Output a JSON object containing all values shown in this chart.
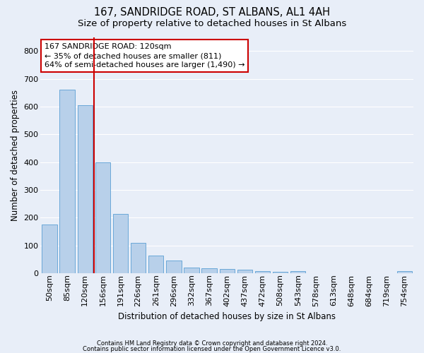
{
  "title1": "167, SANDRIDGE ROAD, ST ALBANS, AL1 4AH",
  "title2": "Size of property relative to detached houses in St Albans",
  "xlabel": "Distribution of detached houses by size in St Albans",
  "ylabel": "Number of detached properties",
  "footer1": "Contains HM Land Registry data © Crown copyright and database right 2024.",
  "footer2": "Contains public sector information licensed under the Open Government Licence v3.0.",
  "categories": [
    "50sqm",
    "85sqm",
    "120sqm",
    "156sqm",
    "191sqm",
    "226sqm",
    "261sqm",
    "296sqm",
    "332sqm",
    "367sqm",
    "402sqm",
    "437sqm",
    "472sqm",
    "508sqm",
    "543sqm",
    "578sqm",
    "613sqm",
    "648sqm",
    "684sqm",
    "719sqm",
    "754sqm"
  ],
  "values": [
    175,
    660,
    605,
    400,
    215,
    110,
    63,
    47,
    20,
    18,
    15,
    12,
    9,
    5,
    7,
    0,
    0,
    0,
    0,
    0,
    8
  ],
  "bar_color": "#b8d0ea",
  "bar_edge_color": "#5a9fd4",
  "marker_index": 2,
  "marker_color": "#cc0000",
  "annotation_line1": "167 SANDRIDGE ROAD: 120sqm",
  "annotation_line2": "← 35% of detached houses are smaller (811)",
  "annotation_line3": "64% of semi-detached houses are larger (1,490) →",
  "annotation_box_color": "#ffffff",
  "annotation_box_edge": "#cc0000",
  "ylim": [
    0,
    850
  ],
  "yticks": [
    0,
    100,
    200,
    300,
    400,
    500,
    600,
    700,
    800
  ],
  "background_color": "#e8eef8",
  "grid_color": "#ffffff",
  "title_fontsize": 10.5,
  "subtitle_fontsize": 9.5,
  "xlabel_fontsize": 8.5,
  "ylabel_fontsize": 8.5,
  "tick_fontsize": 8,
  "footer_fontsize": 6,
  "annot_fontsize": 8
}
